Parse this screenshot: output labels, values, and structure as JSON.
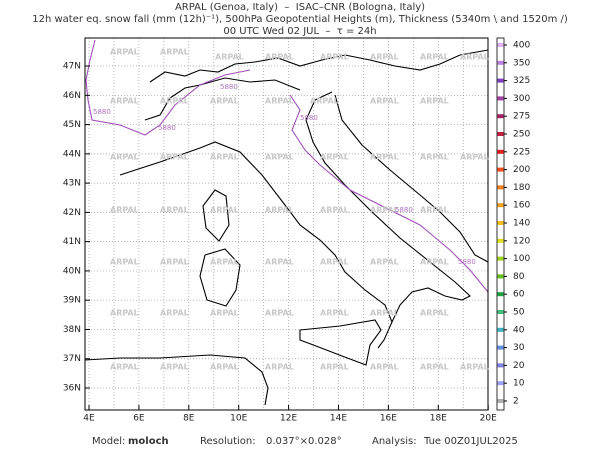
{
  "header": {
    "lines": [
      "ARPAL (Genoa, Italy)  –  ISAC–CNR (Bologna, Italy)",
      "12h water eq. snow fall (mm (12h)⁻¹), 500hPa Geopotential Heights (m), Thickness (5340m \\ and 1520m /)",
      "00 UTC Wed 02 JUL  –  τ = 24h"
    ]
  },
  "map": {
    "lon_ticks": [
      "4E",
      "6E",
      "8E",
      "10E",
      "12E",
      "14E",
      "16E",
      "18E",
      "20E"
    ],
    "lat_ticks": [
      "36N",
      "37N",
      "38N",
      "39N",
      "40N",
      "41N",
      "42N",
      "43N",
      "44N",
      "45N",
      "46N",
      "47N"
    ],
    "watermark": "ARPAL",
    "contour_label": "5880"
  },
  "colorbar": {
    "levels": [
      "400",
      "350",
      "325",
      "300",
      "275",
      "250",
      "225",
      "200",
      "180",
      "160",
      "140",
      "120",
      "100",
      "80",
      "60",
      "50",
      "40",
      "30",
      "20",
      "10",
      "2"
    ]
  },
  "footer": {
    "model_label": "Model:",
    "model": "moloch",
    "resolution_label": "Resolution:",
    "resolution": "0.037°×0.028°",
    "analysis_label": "Analysis:",
    "analysis": "Tue 00Z01JUL2025"
  }
}
